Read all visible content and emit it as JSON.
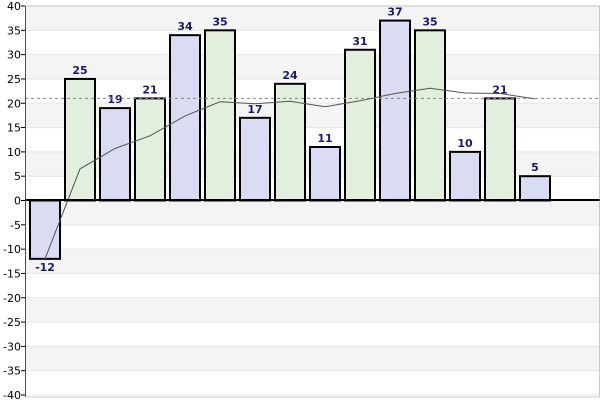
{
  "chart_data": {
    "type": "bar",
    "title": "",
    "xlabel": "",
    "ylabel": "",
    "ylim": [
      -40,
      40
    ],
    "ytick_step": 5,
    "yticks": [
      "40",
      "35",
      "30",
      "25",
      "20",
      "15",
      "10",
      "5",
      "0",
      "-5",
      "-10",
      "-15",
      "-20",
      "-25",
      "-30",
      "-35",
      "-40"
    ],
    "values": [
      -12,
      25,
      19,
      21,
      34,
      35,
      17,
      24,
      11,
      31,
      37,
      35,
      10,
      21,
      5
    ],
    "data_labels": [
      "-12",
      "25",
      "19",
      "21",
      "34",
      "35",
      "17",
      "24",
      "11",
      "31",
      "37",
      "35",
      "10",
      "21",
      "5"
    ],
    "bar_colors": [
      "#d9dcf2",
      "#e2efdc",
      "#d9dcf2",
      "#e2efdc",
      "#d9dcf2",
      "#e2efdc",
      "#d9dcf2",
      "#e2efdc",
      "#d9dcf2",
      "#e2efdc",
      "#d9dcf2",
      "#e2efdc",
      "#d9dcf2",
      "#e2efdc",
      "#d9dcf2"
    ],
    "moving_average": [
      -12,
      6.5,
      10.7,
      13.3,
      17.4,
      20.3,
      19.9,
      20.4,
      19.3,
      20.5,
      22.0,
      23.1,
      22.1,
      22.0,
      20.9
    ],
    "average_line": 21,
    "grid": true,
    "colors": {
      "bar_border": "#000000",
      "label_text": "#1a1a6e",
      "trend_line": "#555555",
      "average_line": "#888888",
      "grid_line": "#e6e6e6",
      "band_fill": "#f4f4f4"
    }
  }
}
